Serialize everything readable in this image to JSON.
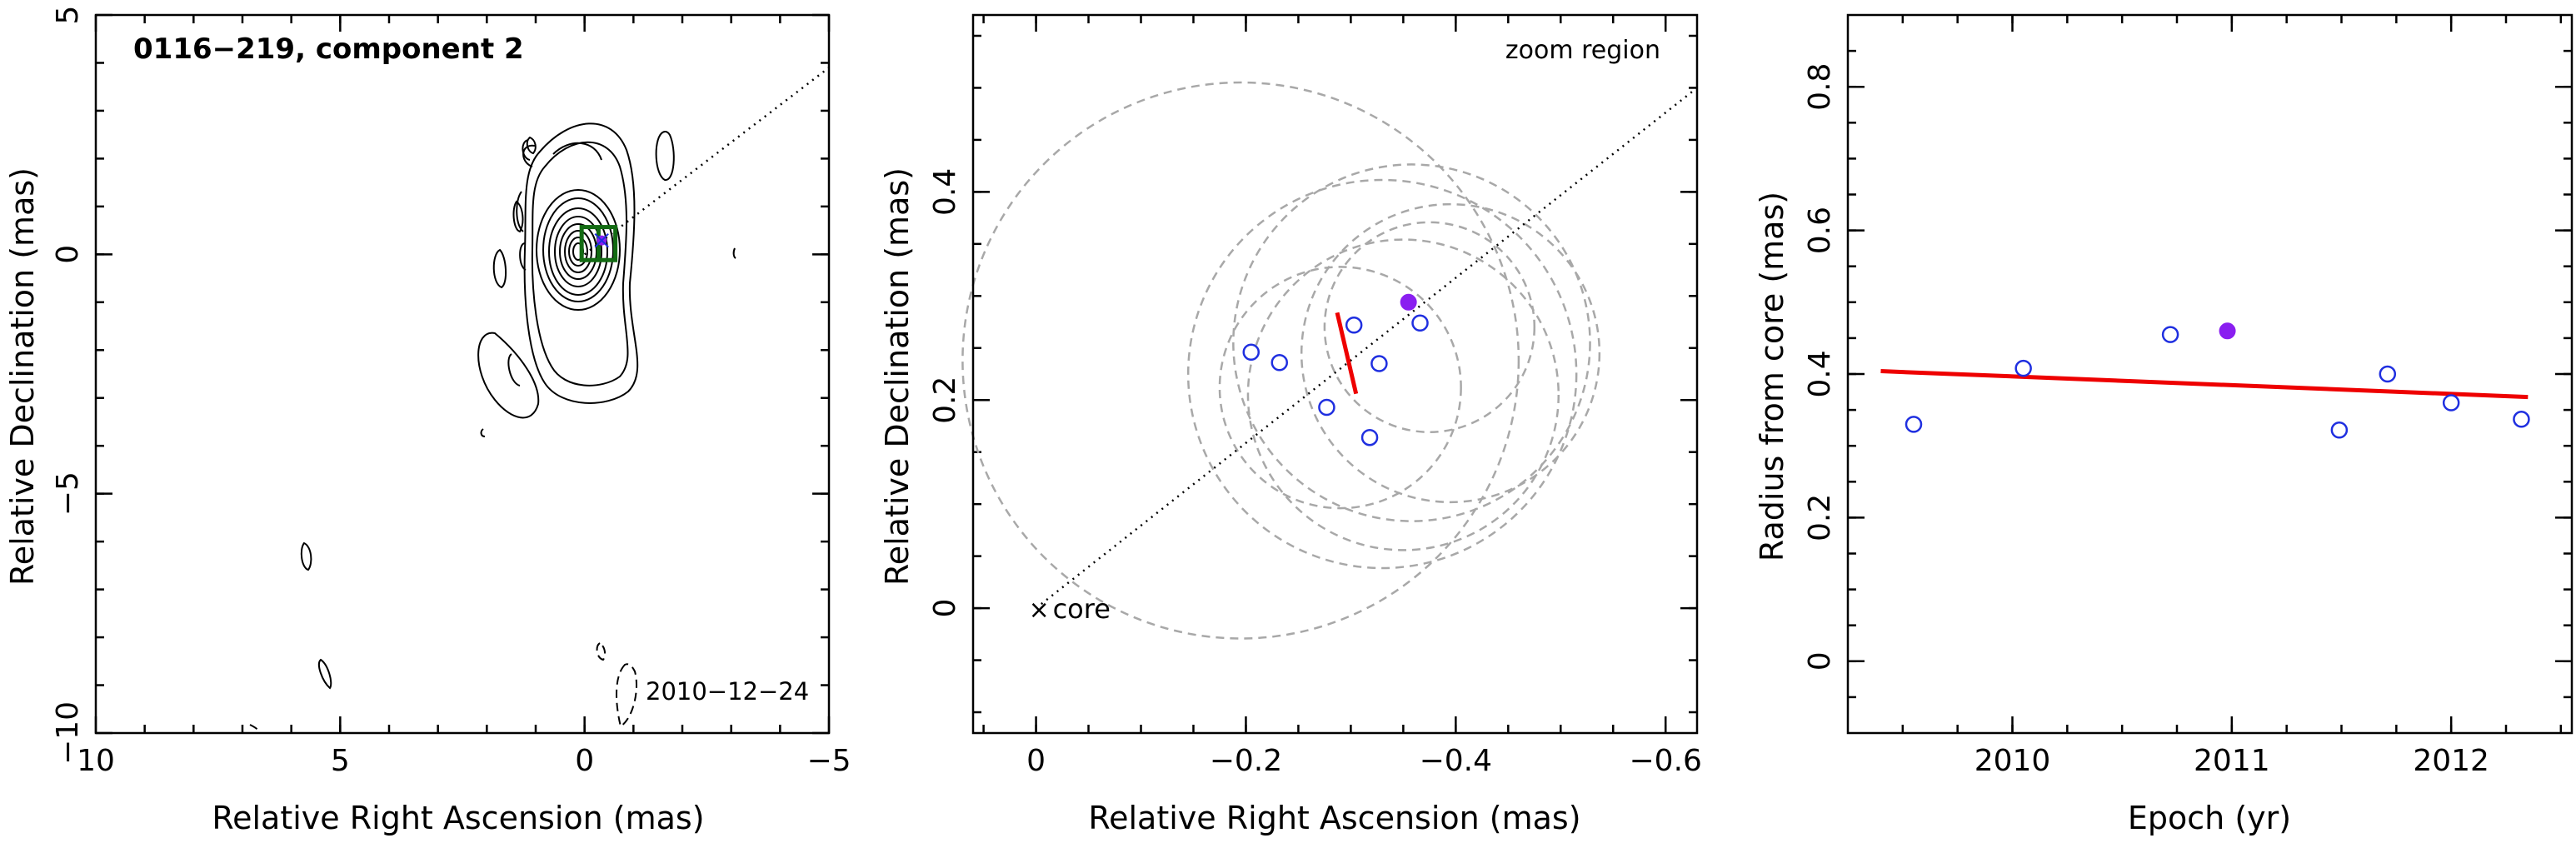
{
  "colors": {
    "open_points": "#1f2fe0",
    "filled_point": "#8a1ff0",
    "fit_line": "#ee0000",
    "beam_circles": "#a8a8a8",
    "zoom_box": "#136b13"
  },
  "chart_data": [
    {
      "type": "contour",
      "title": "0116−219, component 2",
      "date_label": "2010−12−24",
      "xlabel": "Relative Right Ascension (mas)",
      "ylabel": "Relative Declination (mas)",
      "xlim": [
        10,
        -5
      ],
      "ylim": [
        -10,
        5
      ],
      "x_ticks": [
        10,
        5,
        0,
        -5
      ],
      "x_tick_labels": [
        "10",
        "5",
        "0",
        "−5"
      ],
      "y_ticks": [
        -10,
        -5,
        0,
        5
      ],
      "y_tick_labels": [
        "−10",
        "−5",
        "0",
        "5"
      ],
      "component_position": [
        -0.35,
        0.29
      ],
      "zoom_box": {
        "x": [
          0.06,
          -0.63
        ],
        "y": [
          -0.12,
          0.57
        ]
      },
      "jet_axis": {
        "from": [
          0,
          0
        ],
        "to": [
          -5,
          3.9
        ]
      }
    },
    {
      "type": "scatter",
      "annotation_zoom": "zoom region",
      "annotation_core": "core",
      "xlabel": "Relative Right Ascension (mas)",
      "ylabel": "Relative Declination (mas)",
      "xlim": [
        0.06,
        -0.63
      ],
      "ylim": [
        -0.12,
        0.57
      ],
      "x_ticks": [
        0,
        -0.2,
        -0.4,
        -0.6
      ],
      "x_tick_labels": [
        "0",
        "−0.2",
        "−0.4",
        "−0.6"
      ],
      "y_ticks": [
        0,
        0.2,
        0.4
      ],
      "y_tick_labels": [
        "0",
        "0.2",
        "0.4"
      ],
      "open_points": [
        {
          "x": -0.205,
          "y": 0.246
        },
        {
          "x": -0.232,
          "y": 0.236
        },
        {
          "x": -0.277,
          "y": 0.193
        },
        {
          "x": -0.303,
          "y": 0.272
        },
        {
          "x": -0.318,
          "y": 0.164
        },
        {
          "x": -0.327,
          "y": 0.235
        },
        {
          "x": -0.366,
          "y": 0.274
        }
      ],
      "filled_point": {
        "x": -0.355,
        "y": 0.294
      },
      "fit_segment": {
        "from": [
          -0.287,
          0.284
        ],
        "to": [
          -0.305,
          0.206
        ]
      },
      "beam_circles": [
        {
          "cx": -0.195,
          "cy": 0.238,
          "r": 0.265
        },
        {
          "cx": -0.358,
          "cy": 0.255,
          "r": 0.17
        },
        {
          "cx": -0.395,
          "cy": 0.245,
          "r": 0.142
        },
        {
          "cx": -0.35,
          "cy": 0.205,
          "r": 0.148
        },
        {
          "cx": -0.29,
          "cy": 0.212,
          "r": 0.115
        },
        {
          "cx": -0.33,
          "cy": 0.225,
          "r": 0.185
        },
        {
          "cx": -0.375,
          "cy": 0.27,
          "r": 0.1
        }
      ],
      "jet_axis": {
        "from": [
          0,
          0
        ],
        "to": [
          -0.63,
          0.5
        ]
      }
    },
    {
      "type": "scatter",
      "xlabel": "Epoch (yr)",
      "ylabel": "Radius from core (mas)",
      "xlim": [
        2009.25,
        2012.55
      ],
      "ylim": [
        -0.1,
        0.9
      ],
      "x_ticks": [
        2010,
        2011,
        2012
      ],
      "x_tick_labels": [
        "2010",
        "2011",
        "2012"
      ],
      "y_ticks": [
        0,
        0.2,
        0.4,
        0.6,
        0.8
      ],
      "y_tick_labels": [
        "0",
        "0.2",
        "0.4",
        "0.6",
        "0.8"
      ],
      "open_points": [
        {
          "x": 2009.55,
          "y": 0.33
        },
        {
          "x": 2010.05,
          "y": 0.408
        },
        {
          "x": 2010.72,
          "y": 0.455
        },
        {
          "x": 2011.49,
          "y": 0.322
        },
        {
          "x": 2011.71,
          "y": 0.4
        },
        {
          "x": 2012.0,
          "y": 0.36
        },
        {
          "x": 2012.32,
          "y": 0.337
        }
      ],
      "filled_point": {
        "x": 2010.98,
        "y": 0.46
      },
      "fit_line": {
        "from": [
          2009.4,
          0.404
        ],
        "to": [
          2012.35,
          0.368
        ]
      }
    }
  ]
}
